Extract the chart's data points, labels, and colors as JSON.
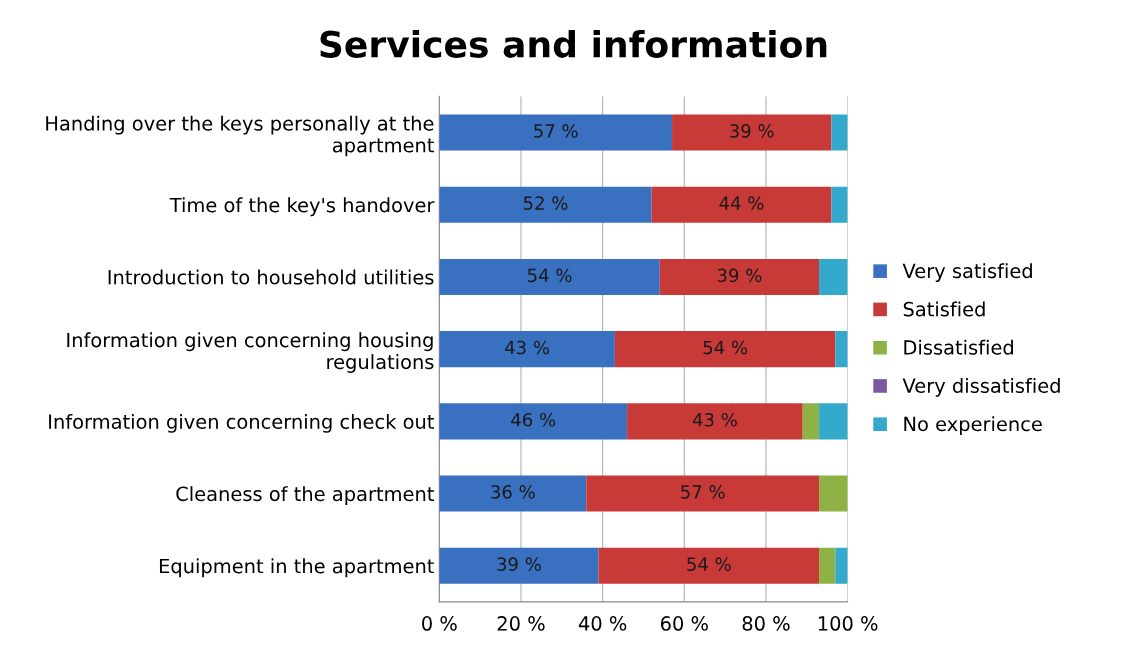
{
  "chart_data": {
    "type": "bar",
    "orientation": "horizontal",
    "stacked": true,
    "title": "Services and information",
    "categories": [
      "Handing over the keys personally at the apartment",
      "Time of the key's handover",
      "Introduction to household utilities",
      "Information given concerning housing regulations",
      "Information given concerning check out",
      "Cleaness of the apartment",
      "Equipment in the apartment"
    ],
    "series": [
      {
        "name": "Very satisfied",
        "color": "#3a70c0",
        "values": [
          57,
          52,
          54,
          43,
          46,
          36,
          39
        ],
        "value_labels": [
          "57 %",
          "52 %",
          "54 %",
          "43 %",
          "46 %",
          "36 %",
          "39 %"
        ]
      },
      {
        "name": "Satisfied",
        "color": "#c83a38",
        "values": [
          39,
          44,
          39,
          54,
          43,
          57,
          54
        ],
        "value_labels": [
          "39 %",
          "44 %",
          "39 %",
          "54 %",
          "43 %",
          "57 %",
          "54 %"
        ]
      },
      {
        "name": "Dissatisfied",
        "color": "#8fb245",
        "values": [
          0,
          0,
          0,
          0,
          4,
          7,
          4
        ]
      },
      {
        "name": "Very dissatisfied",
        "color": "#7b59a0",
        "values": [
          0,
          0,
          0,
          0,
          0,
          0,
          0
        ]
      },
      {
        "name": "No experience",
        "color": "#33a9cc",
        "values": [
          4,
          4,
          7,
          3,
          7,
          0,
          3
        ]
      }
    ],
    "xlim": [
      0,
      100
    ],
    "xticks": [
      {
        "value": 0,
        "label": "0 %"
      },
      {
        "value": 20,
        "label": "20 %"
      },
      {
        "value": 40,
        "label": "40 %"
      },
      {
        "value": 60,
        "label": "60 %"
      },
      {
        "value": 80,
        "label": "80 %"
      },
      {
        "value": 100,
        "label": "100 %"
      }
    ],
    "grid": "x",
    "legend": "right"
  }
}
